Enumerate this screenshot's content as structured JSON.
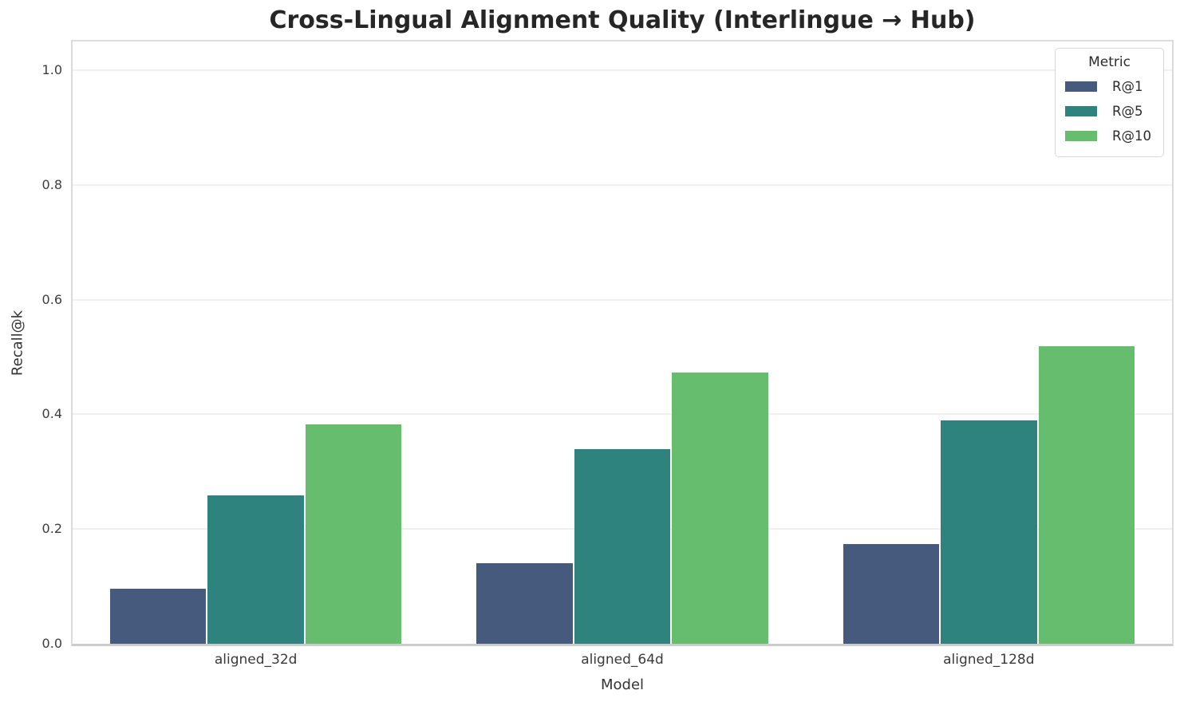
{
  "chart_data": {
    "type": "bar",
    "title": "Cross-Lingual Alignment Quality (Interlingue → Hub)",
    "xlabel": "Model",
    "ylabel": "Recall@k",
    "categories": [
      "aligned_32d",
      "aligned_64d",
      "aligned_128d"
    ],
    "series": [
      {
        "name": "R@1",
        "color": "#465a7e",
        "values": [
          0.096,
          0.14,
          0.174
        ]
      },
      {
        "name": "R@5",
        "color": "#2e837f",
        "values": [
          0.259,
          0.339,
          0.389
        ]
      },
      {
        "name": "R@10",
        "color": "#66bd6d",
        "values": [
          0.383,
          0.473,
          0.519
        ]
      }
    ],
    "ylim": [
      0,
      1.05
    ],
    "yticks": [
      "0.0",
      "0.2",
      "0.4",
      "0.6",
      "0.8",
      "1.0"
    ],
    "grid": true,
    "legend_title": "Metric",
    "legend_position": "upper right"
  }
}
